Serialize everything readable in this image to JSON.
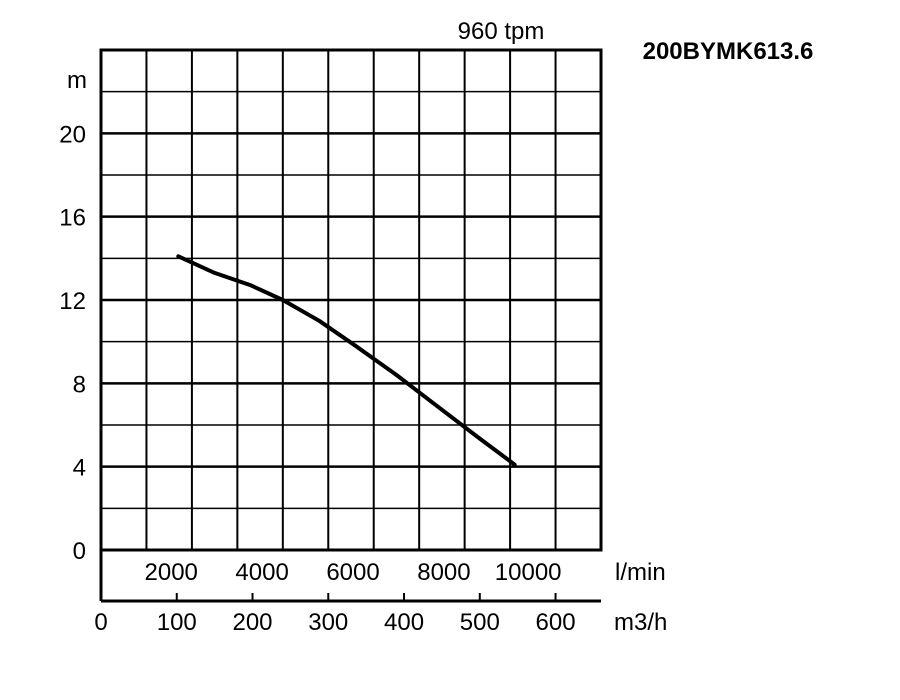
{
  "chart_data": {
    "type": "line",
    "title": "200BYMK613.6",
    "subtitle": "960 tpm",
    "ylabel": "m",
    "xlabel_primary": "l/min",
    "xlabel_secondary": "m3/h",
    "ylim": [
      0,
      24
    ],
    "xlim_lmin": [
      0,
      11000
    ],
    "xlim_m3h": [
      0,
      660
    ],
    "y_ticks": [
      "0",
      "4",
      "8",
      "12",
      "16",
      "20"
    ],
    "x_ticks_lmin": [
      "2000",
      "4000",
      "6000",
      "8000",
      "10000"
    ],
    "x_ticks_m3h": [
      "0",
      "100",
      "200",
      "300",
      "400",
      "500",
      "600"
    ],
    "grid": true,
    "series": [
      {
        "x_lmin": [
          1700,
          2500,
          3300,
          4000,
          4800,
          5600,
          6500,
          7400,
          8300,
          9100
        ],
        "y": [
          14.1,
          13.3,
          12.7,
          12.0,
          11.0,
          9.8,
          8.4,
          6.9,
          5.4,
          4.1
        ]
      }
    ]
  }
}
